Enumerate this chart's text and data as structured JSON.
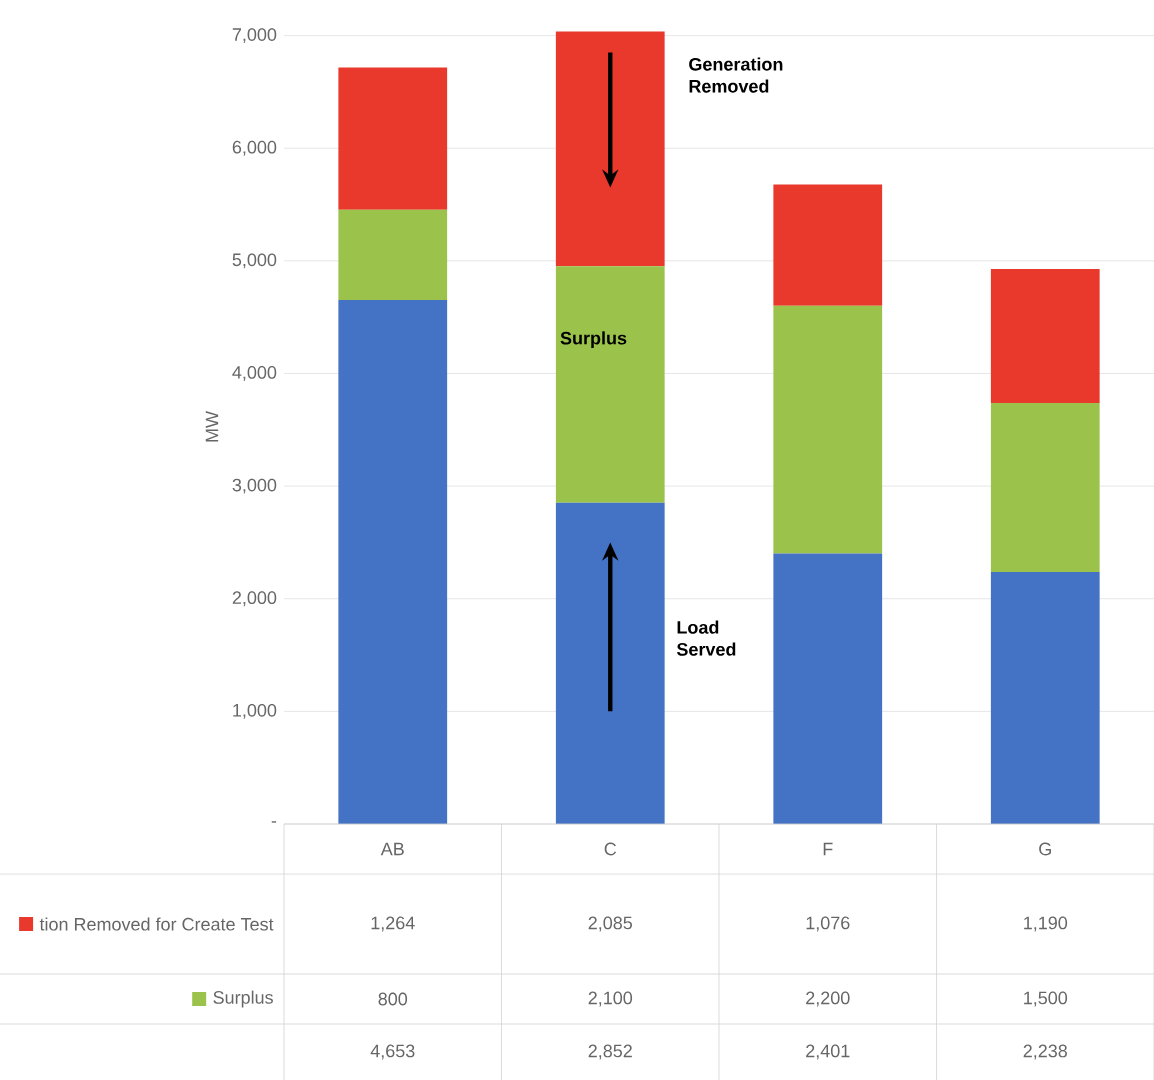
{
  "chart_data": {
    "type": "bar",
    "stacked": true,
    "categories": [
      "AB",
      "C",
      "F",
      "G"
    ],
    "series": [
      {
        "color": "#4472c4",
        "values": [
          4653,
          2852,
          2401,
          2238
        ],
        "value_labels": [
          "4,653",
          "2,852",
          "2,401",
          "2,238"
        ]
      },
      {
        "name": "Surplus",
        "color": "#9bc34b",
        "values": [
          800,
          2100,
          2200,
          1500
        ],
        "value_labels": [
          "800",
          "2,100",
          "2,200",
          "1,500"
        ]
      },
      {
        "name": "tion Removed for Create Test",
        "color": "#e8392c",
        "values": [
          1264,
          2085,
          1076,
          1190
        ],
        "value_labels": [
          "1,264",
          "2,085",
          "1,076",
          "1,190"
        ]
      }
    ],
    "ylabel": "MW",
    "ylim": [
      0,
      7050
    ],
    "yticks": [
      {
        "value": 0,
        "label": "-"
      },
      {
        "value": 1000,
        "label": "1,000"
      },
      {
        "value": 2000,
        "label": "2,000"
      },
      {
        "value": 3000,
        "label": "3,000"
      },
      {
        "value": 4000,
        "label": "4,000"
      },
      {
        "value": 5000,
        "label": "5,000"
      },
      {
        "value": 6000,
        "label": "6,000"
      },
      {
        "value": 7000,
        "label": "7,000"
      }
    ],
    "grid": "y",
    "legend": "bottom left",
    "annotations": [
      "**Generation Removed**",
      "**Surplus**",
      "**Load Served**"
    ]
  }
}
